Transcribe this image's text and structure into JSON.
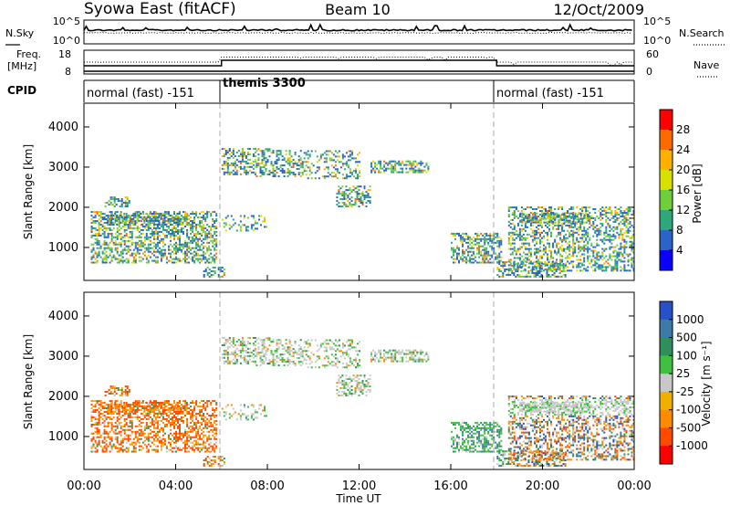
{
  "chart_data": {
    "type": "heatmap",
    "title_left": "Syowa East (fitACF)",
    "title_center": "Beam 10",
    "title_right": "12/Oct/2009",
    "time_axis": {
      "xlabel": "Time UT",
      "ticks": [
        "00:00",
        "04:00",
        "08:00",
        "12:00",
        "16:00",
        "20:00",
        "00:00"
      ],
      "range_hours": [
        0,
        24
      ]
    },
    "sky_panel": {
      "left_label": "N.Sky",
      "right_label": "N.Search",
      "left_ticks": [
        "10^5",
        "10^0"
      ],
      "right_ticks": [
        "10^5",
        "10^0"
      ]
    },
    "freq_panel": {
      "left_label_line1": "Freq.",
      "left_label_line2": "[MHz]",
      "left_ticks": [
        "18",
        "8"
      ],
      "right_ticks": [
        "60",
        "0"
      ],
      "right_label": "Nave"
    },
    "cpid": {
      "label": "CPID",
      "segments": [
        {
          "name": "normal (fast) -151",
          "start_hour": 0,
          "end_hour": 6
        },
        {
          "name": "themis 3300",
          "start_hour": 6,
          "end_hour": 18
        },
        {
          "name": "normal (fast) -151",
          "start_hour": 18,
          "end_hour": 24
        }
      ]
    },
    "power_panel": {
      "ylabel": "Slant Range [km]",
      "yticks": [
        "1000",
        "2000",
        "3000",
        "4000"
      ],
      "ylim_km": [
        180,
        4590
      ],
      "colorbar_label": "Power [dB]",
      "colorbar_ticks": [
        "28",
        "24",
        "20",
        "16",
        "12",
        "8",
        "4"
      ],
      "colorbar_colors": [
        "#ff0000",
        "#ff6a00",
        "#ffb000",
        "#d8e000",
        "#6fcf3a",
        "#2ea77a",
        "#2a64c8",
        "#0a00ff"
      ]
    },
    "velocity_panel": {
      "ylabel": "Slant Range [km]",
      "yticks": [
        "1000",
        "2000",
        "3000",
        "4000"
      ],
      "ylim_km": [
        180,
        4590
      ],
      "colorbar_label": "Velocity [m s⁻¹]",
      "colorbar_ticks": [
        "1000",
        "500",
        "100",
        "25",
        "-25",
        "-100",
        "-500",
        "-1000"
      ],
      "colorbar_colors": [
        "#2850c8",
        "#3c7aa8",
        "#2e8f5a",
        "#3fc040",
        "#c8c8c8",
        "#f0b000",
        "#ff8a00",
        "#ff4a00",
        "#ff0000"
      ]
    },
    "scatter_regions": [
      {
        "t0": 0.9,
        "t1": 2.0,
        "r0": 2000,
        "r1": 2250,
        "density": 0.55
      },
      {
        "t0": 0.3,
        "t1": 5.8,
        "r0": 600,
        "r1": 1900,
        "density": 0.5
      },
      {
        "t0": 1.0,
        "t1": 4.5,
        "r0": 1550,
        "r1": 1850,
        "density": 0.55
      },
      {
        "t0": 5.2,
        "t1": 6.1,
        "r0": 250,
        "r1": 500,
        "density": 0.6
      },
      {
        "t0": 6.0,
        "t1": 7.5,
        "r0": 2800,
        "r1": 3450,
        "density": 0.45
      },
      {
        "t0": 7.5,
        "t1": 9.5,
        "r0": 2750,
        "r1": 3450,
        "density": 0.35
      },
      {
        "t0": 9.5,
        "t1": 12.0,
        "r0": 2700,
        "r1": 3400,
        "density": 0.35
      },
      {
        "t0": 11.0,
        "t1": 12.5,
        "r0": 2000,
        "r1": 2500,
        "density": 0.45
      },
      {
        "t0": 12.5,
        "t1": 15.0,
        "r0": 2850,
        "r1": 3150,
        "density": 0.5
      },
      {
        "t0": 6.0,
        "t1": 8.0,
        "r0": 1400,
        "r1": 1800,
        "density": 0.2
      },
      {
        "t0": 16.0,
        "t1": 18.2,
        "r0": 600,
        "r1": 1350,
        "density": 0.5
      },
      {
        "t0": 18.0,
        "t1": 21.0,
        "r0": 250,
        "r1": 650,
        "density": 0.5
      },
      {
        "t0": 19.0,
        "t1": 22.0,
        "r0": 1600,
        "r1": 1850,
        "density": 0.6
      },
      {
        "t0": 18.5,
        "t1": 24.0,
        "r0": 400,
        "r1": 2000,
        "density": 0.42
      }
    ]
  }
}
